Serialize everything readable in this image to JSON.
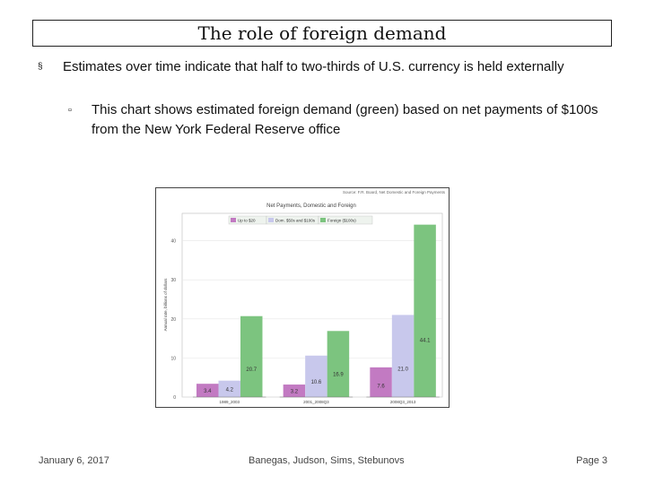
{
  "slide": {
    "title": "The role of foreign demand",
    "bullets": [
      {
        "marker": "§",
        "text": "Estimates over time indicate that half to two-thirds of U.S. currency is held externally"
      },
      {
        "marker": "▫",
        "text": "This chart shows estimated foreign demand (green) based on net payments of $100s from the New York Federal Reserve office"
      }
    ]
  },
  "footer": {
    "date": "January 6, 2017",
    "authors": "Banegas, Judson, Sims, Stebunovs",
    "page": "Page 3"
  },
  "chart_data": {
    "type": "bar",
    "title": "Net Payments, Domestic and Foreign",
    "top_note": "Source: F.R. Board, Net Domestic and Foreign Payments",
    "ylabel": "Annual rate, billions of dollars",
    "xlabel": "",
    "ylim": [
      0,
      47
    ],
    "yticks": [
      0,
      10,
      20,
      30,
      40
    ],
    "categories": [
      "1989_2003",
      "2001_2008Q3",
      "2008Q3_2013"
    ],
    "series": [
      {
        "name": "Up to $20",
        "color": "#c27ac2",
        "values": [
          3.4,
          3.2,
          7.6
        ]
      },
      {
        "name": "Dom. $50s and $100s",
        "color": "#c8c8ec",
        "values": [
          4.2,
          10.6,
          21.0
        ]
      },
      {
        "name": "Foreign ($100s)",
        "color": "#7cc47f",
        "values": [
          20.7,
          16.9,
          44.1
        ]
      }
    ]
  }
}
